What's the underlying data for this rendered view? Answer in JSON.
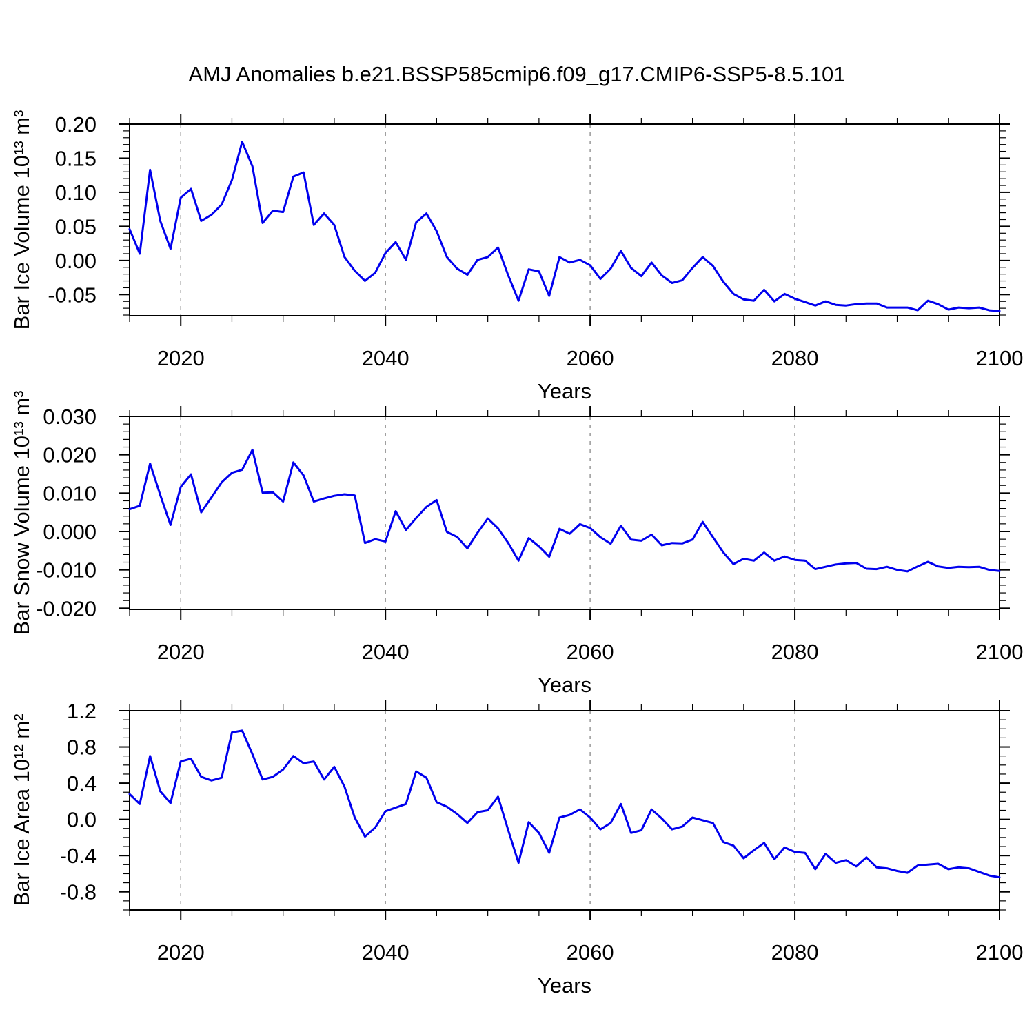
{
  "title": "AMJ Anomalies b.e21.BSSP585cmip6.f09_g17.CMIP6-SSP5-8.5.101",
  "grid_color": "#999999",
  "frame_color": "#000000",
  "x_axis": {
    "label": "Years",
    "range": [
      2015,
      2100
    ],
    "ticks": [
      2020,
      2040,
      2060,
      2080,
      2100
    ],
    "tick_labels": [
      "2020",
      "2040",
      "2060",
      "2080",
      "2100"
    ],
    "minor_step": 5,
    "gridlines": [
      2020,
      2040,
      2060,
      2080
    ]
  },
  "years": [
    2015,
    2016,
    2017,
    2018,
    2019,
    2020,
    2021,
    2022,
    2023,
    2024,
    2025,
    2026,
    2027,
    2028,
    2029,
    2030,
    2031,
    2032,
    2033,
    2034,
    2035,
    2036,
    2037,
    2038,
    2039,
    2040,
    2041,
    2042,
    2043,
    2044,
    2045,
    2046,
    2047,
    2048,
    2049,
    2050,
    2051,
    2052,
    2053,
    2054,
    2055,
    2056,
    2057,
    2058,
    2059,
    2060,
    2061,
    2062,
    2063,
    2064,
    2065,
    2066,
    2067,
    2068,
    2069,
    2070,
    2071,
    2072,
    2073,
    2074,
    2075,
    2076,
    2077,
    2078,
    2079,
    2080,
    2081,
    2082,
    2083,
    2084,
    2085,
    2086,
    2087,
    2088,
    2089,
    2090,
    2091,
    2092,
    2093,
    2094,
    2095,
    2096,
    2097,
    2098,
    2099,
    2100
  ],
  "chart_data": [
    {
      "id": "ice-volume",
      "type": "line",
      "ylabel": "Bar Ice Volume 10¹³ m³",
      "xlabel": "Years",
      "series_color": "#0000ee",
      "ylim": [
        -0.081,
        0.2
      ],
      "yticks": [
        0.2,
        0.15,
        0.1,
        0.05,
        0.0,
        -0.05
      ],
      "ytick_labels": [
        "0.20",
        "0.15",
        "0.10",
        "0.05",
        "0.00",
        "-0.05"
      ],
      "yminor_step": 0.01,
      "values": [
        0.046,
        0.01,
        0.133,
        0.058,
        0.017,
        0.092,
        0.105,
        0.058,
        0.067,
        0.082,
        0.118,
        0.174,
        0.138,
        0.055,
        0.073,
        0.071,
        0.123,
        0.129,
        0.052,
        0.069,
        0.052,
        0.005,
        -0.015,
        -0.03,
        -0.018,
        0.011,
        0.027,
        0.001,
        0.056,
        0.069,
        0.043,
        0.005,
        -0.012,
        -0.021,
        0.001,
        0.005,
        0.019,
        -0.022,
        -0.059,
        -0.013,
        -0.016,
        -0.052,
        0.005,
        -0.003,
        0.001,
        -0.007,
        -0.027,
        -0.012,
        0.014,
        -0.011,
        -0.023,
        -0.003,
        -0.022,
        -0.033,
        -0.029,
        -0.011,
        0.005,
        -0.008,
        -0.031,
        -0.049,
        -0.057,
        -0.059,
        -0.043,
        -0.06,
        -0.049,
        -0.056,
        -0.061,
        -0.066,
        -0.06,
        -0.065,
        -0.066,
        -0.064,
        -0.063,
        -0.063,
        -0.069,
        -0.069,
        -0.069,
        -0.073,
        -0.059,
        -0.064,
        -0.072,
        -0.069,
        -0.07,
        -0.069,
        -0.073,
        -0.074
      ]
    },
    {
      "id": "snow-volume",
      "type": "line",
      "ylabel": "Bar Snow Volume 10¹³ m³",
      "xlabel": "Years",
      "series_color": "#0000ee",
      "ylim": [
        -0.0203,
        0.03
      ],
      "yticks": [
        0.03,
        0.02,
        0.01,
        0.0,
        -0.01,
        -0.02
      ],
      "ytick_labels": [
        "0.030",
        "0.020",
        "0.010",
        "0.000",
        "-0.010",
        "-0.020"
      ],
      "yminor_step": 0.002,
      "values": [
        0.0058,
        0.0067,
        0.0177,
        0.0095,
        0.0017,
        0.0116,
        0.0149,
        0.005,
        0.0089,
        0.0128,
        0.0153,
        0.0161,
        0.0213,
        0.0101,
        0.0102,
        0.0078,
        0.018,
        0.0146,
        0.0078,
        0.0086,
        0.0093,
        0.0097,
        0.0094,
        -0.003,
        -0.002,
        -0.0026,
        0.0053,
        0.0004,
        0.0035,
        0.0064,
        0.0082,
        -0.0001,
        -0.0014,
        -0.0044,
        -0.0003,
        0.0034,
        0.0008,
        -0.003,
        -0.0076,
        -0.0017,
        -0.0039,
        -0.0066,
        0.0007,
        -0.0006,
        0.0019,
        0.0009,
        -0.0015,
        -0.0032,
        0.0015,
        -0.0021,
        -0.0024,
        -0.0008,
        -0.0036,
        -0.003,
        -0.0031,
        -0.0021,
        0.0025,
        -0.0015,
        -0.0054,
        -0.0085,
        -0.0071,
        -0.0076,
        -0.0055,
        -0.0076,
        -0.0065,
        -0.0074,
        -0.0076,
        -0.0098,
        -0.0092,
        -0.0086,
        -0.0083,
        -0.0082,
        -0.0097,
        -0.0098,
        -0.0092,
        -0.01,
        -0.0104,
        -0.0091,
        -0.0079,
        -0.0091,
        -0.0095,
        -0.0092,
        -0.0093,
        -0.0092,
        -0.01,
        -0.0103
      ]
    },
    {
      "id": "ice-area",
      "type": "line",
      "ylabel": "Bar Ice Area 10¹² m²",
      "xlabel": "Years",
      "series_color": "#0000ee",
      "ylim": [
        -1.0,
        1.2
      ],
      "yticks": [
        1.2,
        0.8,
        0.4,
        0.0,
        -0.4,
        -0.8
      ],
      "ytick_labels": [
        "1.2",
        "0.8",
        "0.4",
        "0.0",
        "-0.4",
        "-0.8"
      ],
      "yminor_step": 0.1,
      "values": [
        0.28,
        0.17,
        0.7,
        0.31,
        0.18,
        0.64,
        0.67,
        0.47,
        0.43,
        0.46,
        0.96,
        0.98,
        0.72,
        0.44,
        0.47,
        0.55,
        0.7,
        0.62,
        0.64,
        0.44,
        0.58,
        0.36,
        0.02,
        -0.19,
        -0.09,
        0.09,
        0.13,
        0.17,
        0.53,
        0.46,
        0.19,
        0.14,
        0.06,
        -0.04,
        0.08,
        0.1,
        0.25,
        -0.12,
        -0.48,
        -0.03,
        -0.15,
        -0.37,
        0.02,
        0.05,
        0.11,
        0.02,
        -0.11,
        -0.04,
        0.17,
        -0.15,
        -0.12,
        0.11,
        0.01,
        -0.11,
        -0.08,
        0.02,
        -0.01,
        -0.04,
        -0.25,
        -0.29,
        -0.43,
        -0.34,
        -0.26,
        -0.44,
        -0.31,
        -0.36,
        -0.37,
        -0.55,
        -0.38,
        -0.48,
        -0.45,
        -0.52,
        -0.42,
        -0.53,
        -0.54,
        -0.57,
        -0.59,
        -0.51,
        -0.5,
        -0.49,
        -0.55,
        -0.53,
        -0.54,
        -0.58,
        -0.62,
        -0.64
      ]
    }
  ]
}
